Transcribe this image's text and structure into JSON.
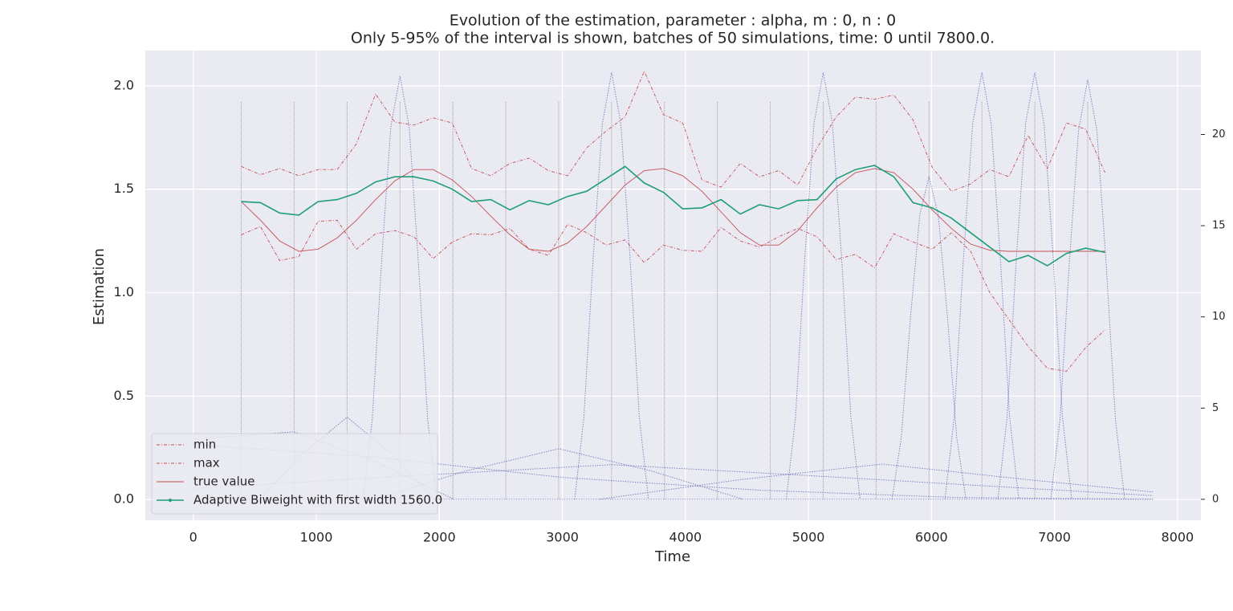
{
  "chart_data": {
    "type": "line",
    "title": "Evolution of the estimation, parameter : alpha, m : 0, n : 0",
    "subtitle": "Only 5-95% of the interval is shown, batches of 50 simulations, time: 0 until 7800.0.",
    "xlabel": "Time",
    "ylabel": "Estimation",
    "x": [
      390,
      546,
      702,
      858,
      1014,
      1170,
      1326,
      1482,
      1638,
      1794,
      1950,
      2106,
      2262,
      2418,
      2574,
      2730,
      2886,
      3042,
      3198,
      3354,
      3510,
      3666,
      3822,
      3978,
      4134,
      4290,
      4446,
      4602,
      4758,
      4914,
      5070,
      5226,
      5382,
      5538,
      5694,
      5850,
      6006,
      6162,
      6318,
      6474,
      6630,
      6786,
      6942,
      7098,
      7254,
      7410
    ],
    "series": [
      {
        "name": "min",
        "color": "#c44e52",
        "linestyle": "-.",
        "values": [
          1.28,
          1.32,
          1.155,
          1.175,
          1.345,
          1.35,
          1.21,
          1.285,
          1.3,
          1.27,
          1.165,
          1.245,
          1.285,
          1.28,
          1.31,
          1.21,
          1.18,
          1.33,
          1.29,
          1.23,
          1.255,
          1.145,
          1.23,
          1.205,
          1.2,
          1.315,
          1.25,
          1.22,
          1.27,
          1.31,
          1.27,
          1.16,
          1.185,
          1.12,
          1.285,
          1.245,
          1.21,
          1.29,
          1.2,
          1.0,
          0.87,
          0.74,
          0.635,
          0.62,
          0.735,
          0.82
        ]
      },
      {
        "name": "max",
        "color": "#c44e52",
        "linestyle": "-.",
        "values": [
          1.61,
          1.57,
          1.6,
          1.565,
          1.595,
          1.595,
          1.72,
          1.96,
          1.825,
          1.81,
          1.845,
          1.82,
          1.6,
          1.565,
          1.625,
          1.65,
          1.59,
          1.565,
          1.7,
          1.78,
          1.85,
          2.07,
          1.86,
          1.82,
          1.545,
          1.51,
          1.625,
          1.56,
          1.59,
          1.52,
          1.7,
          1.85,
          1.945,
          1.935,
          1.955,
          1.835,
          1.605,
          1.49,
          1.525,
          1.595,
          1.56,
          1.76,
          1.6,
          1.82,
          1.79,
          1.58
        ]
      },
      {
        "name": "true value",
        "color": "#c44e52",
        "linestyle": "-",
        "values": [
          1.44,
          1.35,
          1.25,
          1.2,
          1.21,
          1.265,
          1.35,
          1.45,
          1.54,
          1.595,
          1.595,
          1.545,
          1.465,
          1.37,
          1.28,
          1.21,
          1.2,
          1.24,
          1.32,
          1.42,
          1.52,
          1.59,
          1.6,
          1.565,
          1.49,
          1.39,
          1.29,
          1.23,
          1.23,
          1.3,
          1.41,
          1.51,
          1.58,
          1.6,
          1.58,
          1.5,
          1.4,
          1.31,
          1.235,
          1.205,
          1.2,
          1.2,
          1.2,
          1.2,
          1.2,
          1.2
        ]
      },
      {
        "name": "Adaptive Biweight with first width 1560.0",
        "color": "#1f9e77",
        "linestyle": "solid",
        "marker": true,
        "values": [
          1.44,
          1.435,
          1.385,
          1.375,
          1.44,
          1.45,
          1.48,
          1.535,
          1.56,
          1.56,
          1.54,
          1.5,
          1.44,
          1.45,
          1.4,
          1.445,
          1.425,
          1.465,
          1.49,
          1.55,
          1.61,
          1.53,
          1.485,
          1.405,
          1.41,
          1.45,
          1.38,
          1.425,
          1.405,
          1.445,
          1.45,
          1.55,
          1.595,
          1.615,
          1.56,
          1.435,
          1.41,
          1.36,
          1.29,
          1.22,
          1.15,
          1.18,
          1.13,
          1.19,
          1.215,
          1.195
        ]
      }
    ],
    "kernel_color": "#6a6ab8",
    "kernels": [
      {
        "axis": "y2",
        "x": [
          1380,
          1455,
          1530,
          1605,
          1680,
          1755,
          1830,
          1905,
          1980
        ],
        "values": [
          0,
          4.4,
          13,
          20.4,
          23.2,
          20.4,
          13,
          4.4,
          0
        ]
      },
      {
        "axis": "y2",
        "x": [
          3100,
          3175,
          3250,
          3325,
          3400,
          3475,
          3550,
          3625,
          3700
        ],
        "values": [
          0,
          4.5,
          13.2,
          20.6,
          23.4,
          20.6,
          13.2,
          4.5,
          0
        ]
      },
      {
        "axis": "y2",
        "x": [
          4820,
          4895,
          4970,
          5045,
          5120,
          5195,
          5270,
          5345,
          5420
        ],
        "values": [
          0,
          4.5,
          13.2,
          20.6,
          23.4,
          20.6,
          13.2,
          4.5,
          0
        ]
      },
      {
        "axis": "y2",
        "x": [
          5680,
          5755,
          5830,
          5905,
          5980,
          6055,
          6130,
          6205,
          6280
        ],
        "values": [
          0,
          3.4,
          10,
          15.6,
          17.7,
          15.6,
          10,
          3.4,
          0
        ]
      },
      {
        "axis": "y2",
        "x": [
          6110,
          6185,
          6260,
          6335,
          6410,
          6485,
          6560,
          6635,
          6710
        ],
        "values": [
          0,
          4.5,
          13.2,
          20.6,
          23.4,
          20.6,
          13.2,
          4.5,
          0
        ]
      },
      {
        "axis": "y2",
        "x": [
          6540,
          6615,
          6690,
          6765,
          6840,
          6915,
          6990,
          7065,
          7140
        ],
        "values": [
          0,
          4.5,
          13.2,
          20.6,
          23.4,
          20.6,
          13.2,
          4.5,
          0
        ]
      },
      {
        "axis": "y2",
        "x": [
          6970,
          7045,
          7120,
          7195,
          7270,
          7345,
          7420,
          7495,
          7570
        ],
        "values": [
          0,
          4.4,
          12.9,
          20.2,
          23.0,
          20.2,
          12.9,
          4.4,
          0
        ]
      },
      {
        "axis": "y2",
        "x": [
          540,
          895,
          1250,
          1605,
          1960
        ],
        "values": [
          0,
          2.53,
          4.5,
          2.53,
          0
        ]
      },
      {
        "axis": "y2",
        "x": [
          0,
          820,
          1470,
          2120
        ],
        "values": [
          3.3,
          3.7,
          2.1,
          0
        ]
      },
      {
        "axis": "y2",
        "x": [
          1470,
          2220,
          2970,
          3720,
          4470
        ],
        "values": [
          0,
          1.56,
          2.77,
          1.56,
          0
        ]
      },
      {
        "axis": "y2",
        "x": [
          0,
          1800,
          3400,
          5000,
          7800
        ],
        "values": [
          0.6,
          1.3,
          1.9,
          1.3,
          0.2
        ]
      },
      {
        "axis": "y2",
        "x": [
          3300,
          4450,
          5600,
          6750,
          7800
        ],
        "values": [
          0,
          1.08,
          1.93,
          1.1,
          0.4
        ]
      },
      {
        "axis": "y2",
        "x": [
          0,
          1500,
          3000,
          4600,
          6200,
          7800
        ],
        "values": [
          3.0,
          2.3,
          1.2,
          0.5,
          0.1,
          0
        ]
      },
      {
        "axis": "y2",
        "x": [
          0,
          7800
        ],
        "values": [
          0,
          0
        ]
      }
    ],
    "centers": [
      390,
      820,
      1250,
      1680,
      2110,
      2540,
      2970,
      3400,
      3830,
      4260,
      4690,
      5120,
      5550,
      5980,
      6410,
      6840,
      7270
    ],
    "center_height": 21.8,
    "center_color": "#8c8c8c",
    "xlim": [
      -390,
      8190
    ],
    "ylim": [
      -0.1,
      2.17
    ],
    "y2lim": [
      -1.15,
      24.6
    ],
    "xticks": [
      0,
      1000,
      2000,
      3000,
      4000,
      5000,
      6000,
      7000,
      8000
    ],
    "yticks": [
      {
        "value": 0,
        "label": "0.0"
      },
      {
        "value": 0.5,
        "label": "0.5"
      },
      {
        "value": 1,
        "label": "1.0"
      },
      {
        "value": 1.5,
        "label": "1.5"
      },
      {
        "value": 2,
        "label": "2.0"
      }
    ],
    "y2ticks": [
      0,
      5,
      10,
      15,
      20
    ],
    "grid": true,
    "legend": "lower left"
  }
}
